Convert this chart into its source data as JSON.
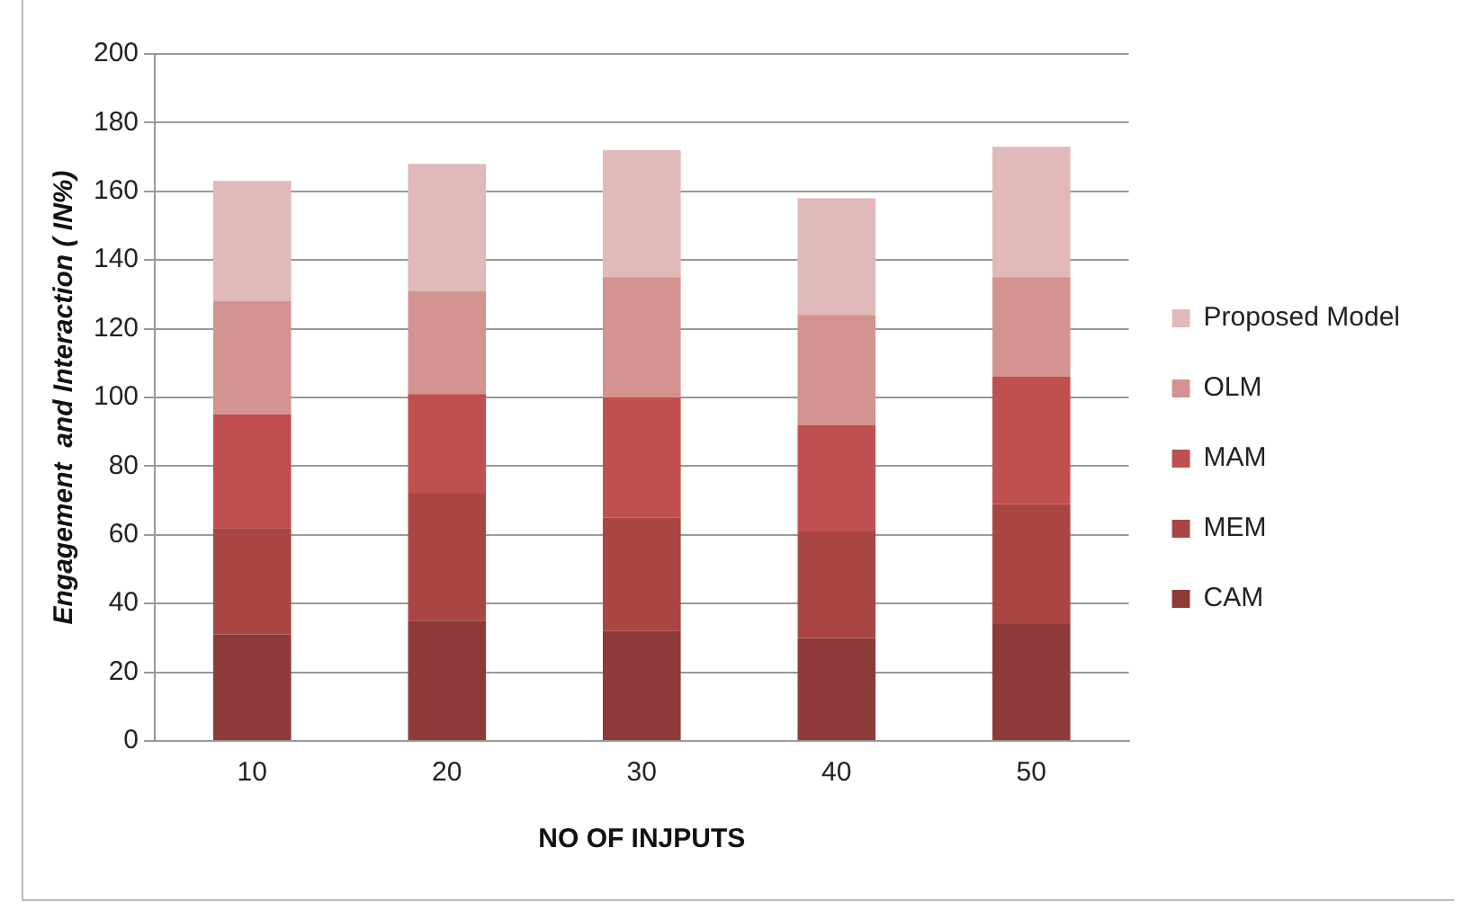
{
  "chart_data": {
    "type": "bar",
    "stacked": true,
    "xlabel": "NO OF INJPUTS",
    "ylabel": "Engagement  and Interaction ( IN%)",
    "categories": [
      "10",
      "20",
      "30",
      "40",
      "50"
    ],
    "series": [
      {
        "name": "CAM",
        "color": "#8e3a38",
        "values": [
          31,
          35,
          32,
          30,
          34
        ]
      },
      {
        "name": "MEM",
        "color": "#a94644",
        "values": [
          31,
          37,
          33,
          31,
          35
        ]
      },
      {
        "name": "MAM",
        "color": "#c0504d",
        "values": [
          33,
          29,
          35,
          31,
          37
        ]
      },
      {
        "name": "OLM",
        "color": "#d39390",
        "values": [
          33,
          30,
          35,
          32,
          29
        ]
      },
      {
        "name": "Proposed Model",
        "color": "#e0b9b8",
        "values": [
          35,
          37,
          37,
          34,
          38
        ]
      }
    ],
    "ylim": [
      0,
      200
    ],
    "yticks": [
      0,
      20,
      40,
      60,
      80,
      100,
      120,
      140,
      160,
      180,
      200
    ],
    "grid": "y",
    "legend": "right"
  }
}
